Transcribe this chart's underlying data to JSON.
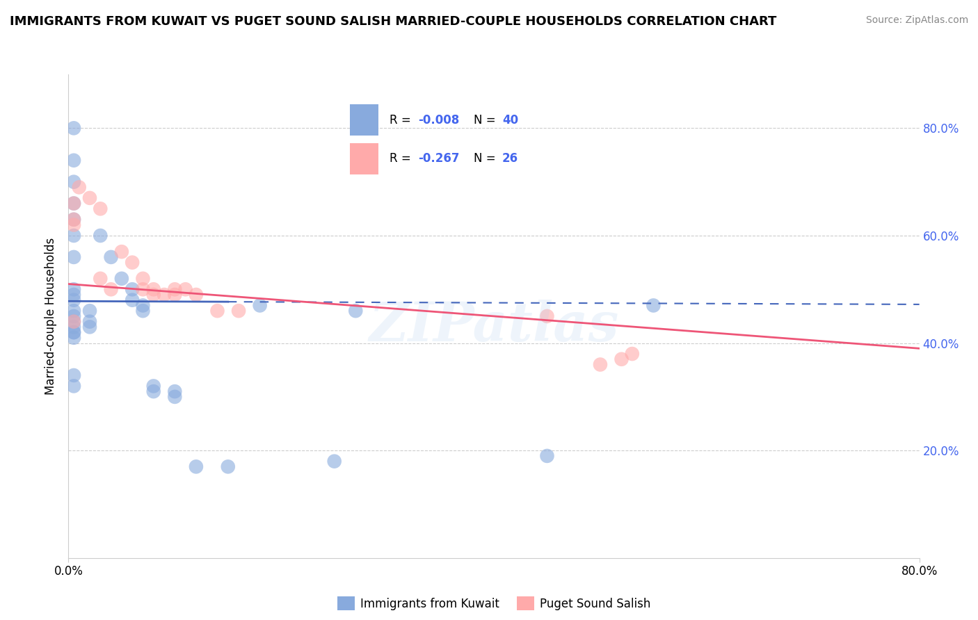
{
  "title": "IMMIGRANTS FROM KUWAIT VS PUGET SOUND SALISH MARRIED-COUPLE HOUSEHOLDS CORRELATION CHART",
  "source": "Source: ZipAtlas.com",
  "ylabel": "Married-couple Households",
  "xlim": [
    0,
    0.8
  ],
  "ylim": [
    0,
    0.9
  ],
  "legend_label1": "Immigrants from Kuwait",
  "legend_label2": "Puget Sound Salish",
  "R1": "-0.008",
  "N1": "40",
  "R2": "-0.267",
  "N2": "26",
  "color_blue": "#88AADD",
  "color_pink": "#FFAAAA",
  "color_blue_line": "#4466BB",
  "color_pink_line": "#EE5577",
  "color_right_axis": "#4466EE",
  "color_grid": "#CCCCCC",
  "watermark": "ZIPatlas",
  "blue_line_y0": 0.478,
  "blue_line_y1": 0.472,
  "pink_line_y0": 0.51,
  "pink_line_y1": 0.39,
  "blue_points_x": [
    0.005,
    0.005,
    0.005,
    0.005,
    0.005,
    0.005,
    0.005,
    0.005,
    0.005,
    0.005,
    0.005,
    0.005,
    0.005,
    0.005,
    0.005,
    0.005,
    0.005,
    0.005,
    0.005,
    0.02,
    0.02,
    0.02,
    0.03,
    0.04,
    0.05,
    0.06,
    0.06,
    0.07,
    0.07,
    0.08,
    0.08,
    0.1,
    0.1,
    0.12,
    0.15,
    0.18,
    0.25,
    0.27,
    0.45,
    0.55
  ],
  "blue_points_y": [
    0.8,
    0.74,
    0.7,
    0.66,
    0.63,
    0.6,
    0.56,
    0.5,
    0.49,
    0.48,
    0.46,
    0.45,
    0.44,
    0.43,
    0.42,
    0.42,
    0.41,
    0.34,
    0.32,
    0.46,
    0.44,
    0.43,
    0.6,
    0.56,
    0.52,
    0.5,
    0.48,
    0.47,
    0.46,
    0.32,
    0.31,
    0.31,
    0.3,
    0.17,
    0.17,
    0.47,
    0.18,
    0.46,
    0.19,
    0.47
  ],
  "pink_points_x": [
    0.005,
    0.005,
    0.005,
    0.005,
    0.01,
    0.02,
    0.03,
    0.03,
    0.04,
    0.05,
    0.06,
    0.07,
    0.07,
    0.08,
    0.08,
    0.09,
    0.1,
    0.1,
    0.11,
    0.12,
    0.14,
    0.16,
    0.45,
    0.5,
    0.52,
    0.53
  ],
  "pink_points_y": [
    0.66,
    0.63,
    0.62,
    0.44,
    0.69,
    0.67,
    0.65,
    0.52,
    0.5,
    0.57,
    0.55,
    0.52,
    0.5,
    0.5,
    0.49,
    0.49,
    0.5,
    0.49,
    0.5,
    0.49,
    0.46,
    0.46,
    0.45,
    0.36,
    0.37,
    0.38
  ]
}
